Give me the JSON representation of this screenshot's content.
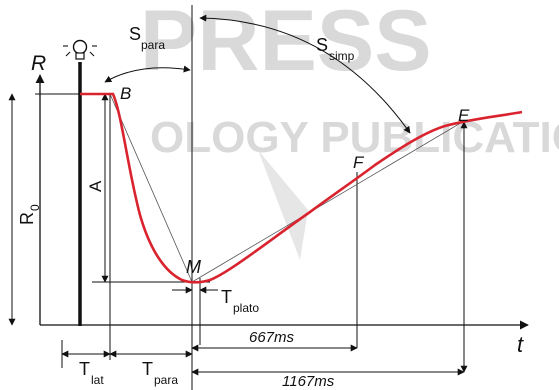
{
  "watermark": {
    "top_text": "PRESS",
    "middle_text": "OLOGY PUBLICATIONS"
  },
  "axes": {
    "y_label": "R",
    "x_label": "t"
  },
  "points": {
    "B": "B",
    "M": "M",
    "F": "F",
    "E": "E"
  },
  "labels": {
    "R0_main": "R",
    "R0_sub": "0",
    "A": "A",
    "S_para_main": "S",
    "S_para_sub": "para",
    "S_simp_main": "S",
    "S_simp_sub": "simp",
    "T_plato_main": "T",
    "T_plato_sub": "plato",
    "T_lat_main": "T",
    "T_lat_sub": "lat",
    "T_para_main": "T",
    "T_para_sub": "para",
    "ms_667": "667ms",
    "ms_1167": "1167ms"
  },
  "colors": {
    "curve": "#d9232e",
    "lines": "#111111",
    "watermark": "#d9d9d9"
  },
  "icons": {
    "stimulus": "lamp-icon"
  }
}
